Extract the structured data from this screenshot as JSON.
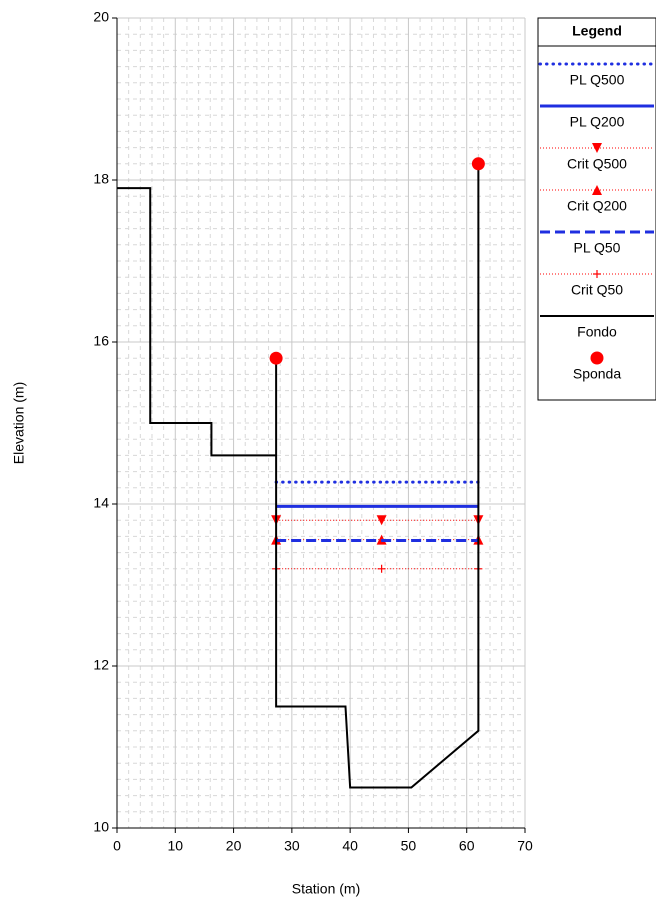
{
  "chart_data": {
    "type": "line",
    "xlabel": "Station (m)",
    "ylabel": "Elevation (m)",
    "xlim": [
      0,
      70
    ],
    "xticks": [
      0,
      10,
      20,
      30,
      40,
      50,
      60,
      70
    ],
    "ylim": [
      10,
      20
    ],
    "yticks": [
      10,
      12,
      14,
      16,
      18,
      20
    ],
    "grid": true,
    "minor_grid": true,
    "legend_title": "Legend",
    "legend": "outside right",
    "series": [
      {
        "name": "PL Q500",
        "color": "#1f2fe0",
        "line_style": "dotted",
        "marker": "none",
        "x": [
          27.3,
          62
        ],
        "values": [
          14.27,
          14.27
        ]
      },
      {
        "name": "PL Q200",
        "color": "#1f2fe0",
        "line_style": "solid",
        "marker": "none",
        "x": [
          27.3,
          62
        ],
        "values": [
          13.97,
          13.97
        ]
      },
      {
        "name": "Crit Q500",
        "color": "#ff0000",
        "line_style": "thin-dotted",
        "marker": "triangle-down",
        "x": [
          27.3,
          45.4,
          62
        ],
        "values": [
          13.8,
          13.8,
          13.8
        ]
      },
      {
        "name": "Crit Q200",
        "color": "#ff0000",
        "line_style": "thin-dotted",
        "marker": "triangle-up",
        "x": [
          27.3,
          45.4,
          62
        ],
        "values": [
          13.56,
          13.56,
          13.56
        ]
      },
      {
        "name": "PL Q50",
        "color": "#1f2fe0",
        "line_style": "dashed",
        "marker": "none",
        "x": [
          27.3,
          62
        ],
        "values": [
          13.55,
          13.55
        ]
      },
      {
        "name": "Crit Q50",
        "color": "#ff0000",
        "line_style": "thin-dotted",
        "marker": "plus",
        "x": [
          27.3,
          45.4,
          62
        ],
        "values": [
          13.2,
          13.2,
          13.2
        ]
      },
      {
        "name": "Fondo",
        "color": "#000000",
        "line_style": "solid-thin",
        "marker": "none",
        "x": [
          0,
          5.7,
          5.7,
          16.2,
          16.2,
          27.3,
          27.3,
          27.3,
          39.2,
          40,
          50.5,
          62,
          62
        ],
        "values": [
          17.9,
          17.9,
          15,
          15,
          14.6,
          14.6,
          15.8,
          11.5,
          11.5,
          10.5,
          10.5,
          11.2,
          18.2
        ]
      },
      {
        "name": "Sponda",
        "color": "#ff0000",
        "line_style": "none",
        "marker": "circle",
        "x": [
          27.3,
          62
        ],
        "values": [
          15.8,
          18.2
        ]
      }
    ]
  }
}
